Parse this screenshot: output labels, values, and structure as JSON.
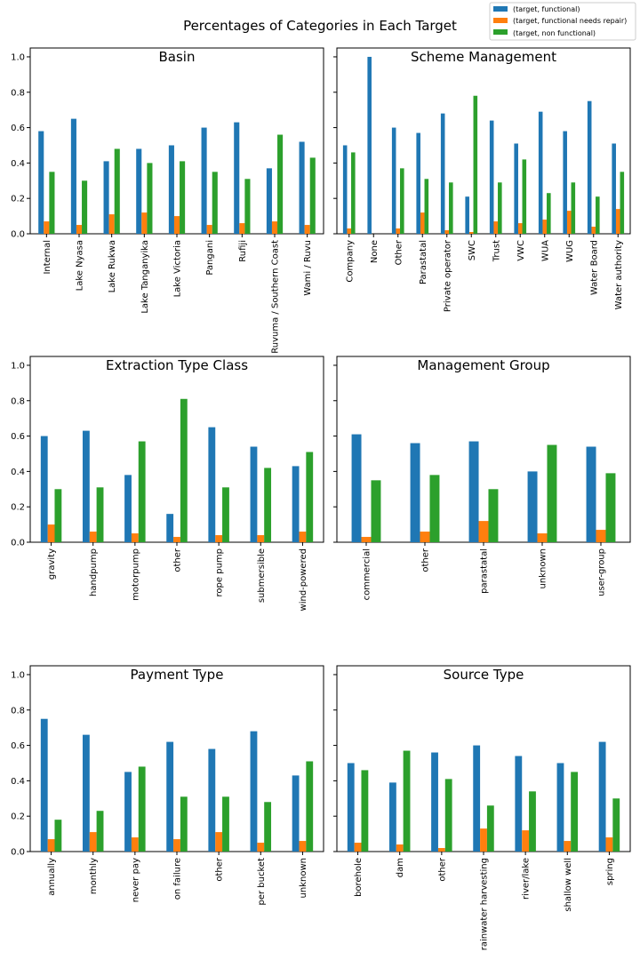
{
  "figure": {
    "title": "Percentages of Categories in Each Target"
  },
  "legend": {
    "placement": "top-right",
    "entries": [
      "(target, functional)",
      "(target, functional needs repair)",
      "(target, non functional)"
    ]
  },
  "colors": {
    "functional": "#1f77b4",
    "needs_repair": "#ff7f0e",
    "non_functional": "#2ca02c"
  },
  "chart_data": [
    {
      "type": "bar",
      "title": "Basin",
      "ylim": [
        0,
        1.05
      ],
      "yticks": [
        "0.0",
        "0.2",
        "0.4",
        "0.6",
        "0.8",
        "1.0"
      ],
      "categories": [
        "Internal",
        "Lake Nyasa",
        "Lake Rukwa",
        "Lake Tanganyika",
        "Lake Victoria",
        "Pangani",
        "Rufiji",
        "Ruvuma / Southern Coast",
        "Wami / Ruvu"
      ],
      "series": [
        {
          "name": "(target, functional)",
          "values": [
            0.58,
            0.65,
            0.41,
            0.48,
            0.5,
            0.6,
            0.63,
            0.37,
            0.52
          ]
        },
        {
          "name": "(target, functional needs repair)",
          "values": [
            0.07,
            0.05,
            0.11,
            0.12,
            0.1,
            0.05,
            0.06,
            0.07,
            0.05
          ]
        },
        {
          "name": "(target, non functional)",
          "values": [
            0.35,
            0.3,
            0.48,
            0.4,
            0.41,
            0.35,
            0.31,
            0.56,
            0.43
          ]
        }
      ]
    },
    {
      "type": "bar",
      "title": "Scheme Management",
      "ylim": [
        0,
        1.05
      ],
      "yticks": [
        "0.0",
        "0.2",
        "0.4",
        "0.6",
        "0.8",
        "1.0"
      ],
      "categories": [
        "Company",
        "None",
        "Other",
        "Parastatal",
        "Private operator",
        "SWC",
        "Trust",
        "VWC",
        "WUA",
        "WUG",
        "Water Board",
        "Water authority"
      ],
      "series": [
        {
          "name": "(target, functional)",
          "values": [
            0.5,
            1.0,
            0.6,
            0.57,
            0.68,
            0.21,
            0.64,
            0.51,
            0.69,
            0.58,
            0.75,
            0.51
          ]
        },
        {
          "name": "(target, functional needs repair)",
          "values": [
            0.03,
            0.0,
            0.03,
            0.12,
            0.02,
            0.01,
            0.07,
            0.06,
            0.08,
            0.13,
            0.04,
            0.14
          ]
        },
        {
          "name": "(target, non functional)",
          "values": [
            0.46,
            0.0,
            0.37,
            0.31,
            0.29,
            0.78,
            0.29,
            0.42,
            0.23,
            0.29,
            0.21,
            0.35
          ]
        }
      ]
    },
    {
      "type": "bar",
      "title": "Extraction Type Class",
      "ylim": [
        0,
        1.05
      ],
      "yticks": [
        "0.0",
        "0.2",
        "0.4",
        "0.6",
        "0.8",
        "1.0"
      ],
      "categories": [
        "gravity",
        "handpump",
        "motorpump",
        "other",
        "rope pump",
        "submersible",
        "wind-powered"
      ],
      "series": [
        {
          "name": "(target, functional)",
          "values": [
            0.6,
            0.63,
            0.38,
            0.16,
            0.65,
            0.54,
            0.43
          ]
        },
        {
          "name": "(target, functional needs repair)",
          "values": [
            0.1,
            0.06,
            0.05,
            0.03,
            0.04,
            0.04,
            0.06
          ]
        },
        {
          "name": "(target, non functional)",
          "values": [
            0.3,
            0.31,
            0.57,
            0.81,
            0.31,
            0.42,
            0.51
          ]
        }
      ]
    },
    {
      "type": "bar",
      "title": "Management Group",
      "ylim": [
        0,
        1.05
      ],
      "yticks": [
        "0.0",
        "0.2",
        "0.4",
        "0.6",
        "0.8",
        "1.0"
      ],
      "categories": [
        "commercial",
        "other",
        "parastatal",
        "unknown",
        "user-group"
      ],
      "series": [
        {
          "name": "(target, functional)",
          "values": [
            0.61,
            0.56,
            0.57,
            0.4,
            0.54
          ]
        },
        {
          "name": "(target, functional needs repair)",
          "values": [
            0.03,
            0.06,
            0.12,
            0.05,
            0.07
          ]
        },
        {
          "name": "(target, non functional)",
          "values": [
            0.35,
            0.38,
            0.3,
            0.55,
            0.39
          ]
        }
      ]
    },
    {
      "type": "bar",
      "title": "Payment Type",
      "ylim": [
        0,
        1.05
      ],
      "yticks": [
        "0.0",
        "0.2",
        "0.4",
        "0.6",
        "0.8",
        "1.0"
      ],
      "categories": [
        "annually",
        "monthly",
        "never pay",
        "on failure",
        "other",
        "per bucket",
        "unknown"
      ],
      "series": [
        {
          "name": "(target, functional)",
          "values": [
            0.75,
            0.66,
            0.45,
            0.62,
            0.58,
            0.68,
            0.43
          ]
        },
        {
          "name": "(target, functional needs repair)",
          "values": [
            0.07,
            0.11,
            0.08,
            0.07,
            0.11,
            0.05,
            0.06
          ]
        },
        {
          "name": "(target, non functional)",
          "values": [
            0.18,
            0.23,
            0.48,
            0.31,
            0.31,
            0.28,
            0.51
          ]
        }
      ]
    },
    {
      "type": "bar",
      "title": "Source Type",
      "ylim": [
        0,
        1.05
      ],
      "yticks": [
        "0.0",
        "0.2",
        "0.4",
        "0.6",
        "0.8",
        "1.0"
      ],
      "categories": [
        "borehole",
        "dam",
        "other",
        "rainwater harvesting",
        "river/lake",
        "shallow well",
        "spring"
      ],
      "series": [
        {
          "name": "(target, functional)",
          "values": [
            0.5,
            0.39,
            0.56,
            0.6,
            0.54,
            0.5,
            0.62
          ]
        },
        {
          "name": "(target, functional needs repair)",
          "values": [
            0.05,
            0.04,
            0.02,
            0.13,
            0.12,
            0.06,
            0.08
          ]
        },
        {
          "name": "(target, non functional)",
          "values": [
            0.46,
            0.57,
            0.41,
            0.26,
            0.34,
            0.45,
            0.3
          ]
        }
      ]
    }
  ]
}
